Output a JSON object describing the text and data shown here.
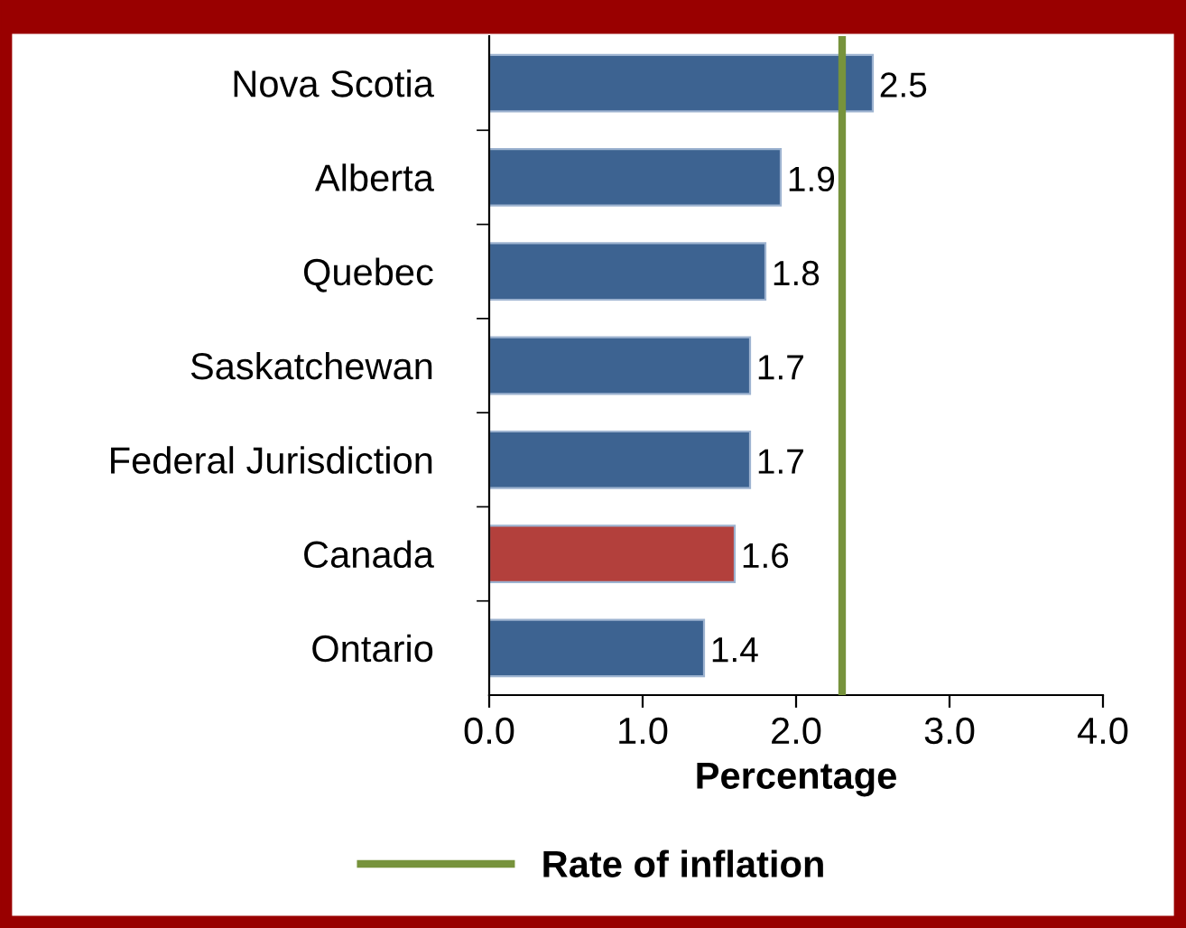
{
  "chart_data": {
    "type": "bar",
    "orientation": "horizontal",
    "xlabel": "Percentage",
    "categories": [
      "Nova Scotia",
      "Alberta",
      "Quebec",
      "Saskatchewan",
      "Federal Jurisdiction",
      "Canada",
      "Ontario"
    ],
    "values": [
      2.5,
      1.9,
      1.8,
      1.7,
      1.7,
      1.6,
      1.4
    ],
    "colors": [
      "#3d6391",
      "#3d6391",
      "#3d6391",
      "#3d6391",
      "#3d6391",
      "#b3403c",
      "#3d6391"
    ],
    "data_labels": true,
    "xlim": [
      0,
      4
    ],
    "xticks": [
      {
        "value": 0,
        "label": "0.0"
      },
      {
        "value": 1,
        "label": "1.0"
      },
      {
        "value": 2,
        "label": "2.0"
      },
      {
        "value": 3,
        "label": "3.0"
      },
      {
        "value": 4,
        "label": "4.0"
      }
    ],
    "ref_lines": [
      {
        "axis": "x",
        "value": 2.3,
        "label": "Rate of inflation",
        "color": "#77933c"
      }
    ],
    "legend": "bottom",
    "grid": false
  }
}
